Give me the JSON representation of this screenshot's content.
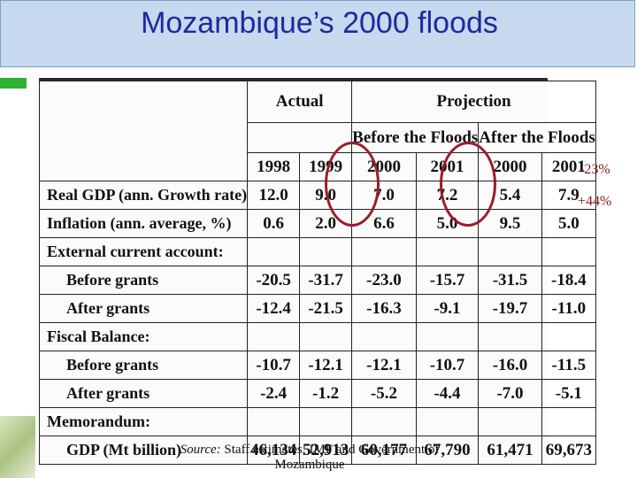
{
  "slide": {
    "title": "Mozambique’s 2000 floods",
    "annotations": [
      "-23%",
      "+44%"
    ],
    "accent_colors": {
      "title_bar": "#c6d9ee",
      "title_text": "#1c2a9c",
      "circle": "#9b1c2c",
      "green_strip": "#2fb135"
    }
  },
  "table": {
    "header_groups": {
      "actual": "Actual",
      "projection": "Projection",
      "before": "Before the Floods",
      "after": "After the Floods"
    },
    "years": [
      "1998",
      "1999",
      "2000",
      "2001",
      "2000",
      "2001"
    ],
    "rows": [
      {
        "label": "Real GDP (ann. Growth rate)",
        "values": [
          "12.0",
          "9.0",
          "7.0",
          "7.2",
          "5.4",
          "7.9"
        ]
      },
      {
        "label": "Inflation (ann. average, %)",
        "values": [
          "0.6",
          "2.0",
          "6.6",
          "5.0",
          "9.5",
          "5.0"
        ]
      },
      {
        "label": "External current account:",
        "values": [
          "",
          "",
          "",
          "",
          "",
          ""
        ]
      },
      {
        "label": "Before grants",
        "values": [
          "-20.5",
          "-31.7",
          "-23.0",
          "-15.7",
          "-31.5",
          "-18.4"
        ]
      },
      {
        "label": "After grants",
        "values": [
          "-12.4",
          "-21.5",
          "-16.3",
          "-9.1",
          "-19.7",
          "-11.0"
        ]
      },
      {
        "label": "Fiscal Balance:",
        "values": [
          "",
          "",
          "",
          "",
          "",
          ""
        ]
      },
      {
        "label": "Before grants",
        "values": [
          "-10.7",
          "-12.1",
          "-12.1",
          "-10.7",
          "-16.0",
          "-11.5"
        ]
      },
      {
        "label": "After grants",
        "values": [
          "-2.4",
          "-1.2",
          "-5.2",
          "-4.4",
          "-7.0",
          "-5.1"
        ]
      },
      {
        "label": "Memorandum:",
        "values": [
          "",
          "",
          "",
          "",
          "",
          ""
        ]
      },
      {
        "label": "GDP (Mt billion)",
        "values": [
          "46,134",
          "52,913",
          "60,177",
          "67,790",
          "61,471",
          "69,673"
        ]
      }
    ],
    "source_label": "Source:",
    "source_text": "Staff estimates, IMF and Government of Mozambique"
  }
}
